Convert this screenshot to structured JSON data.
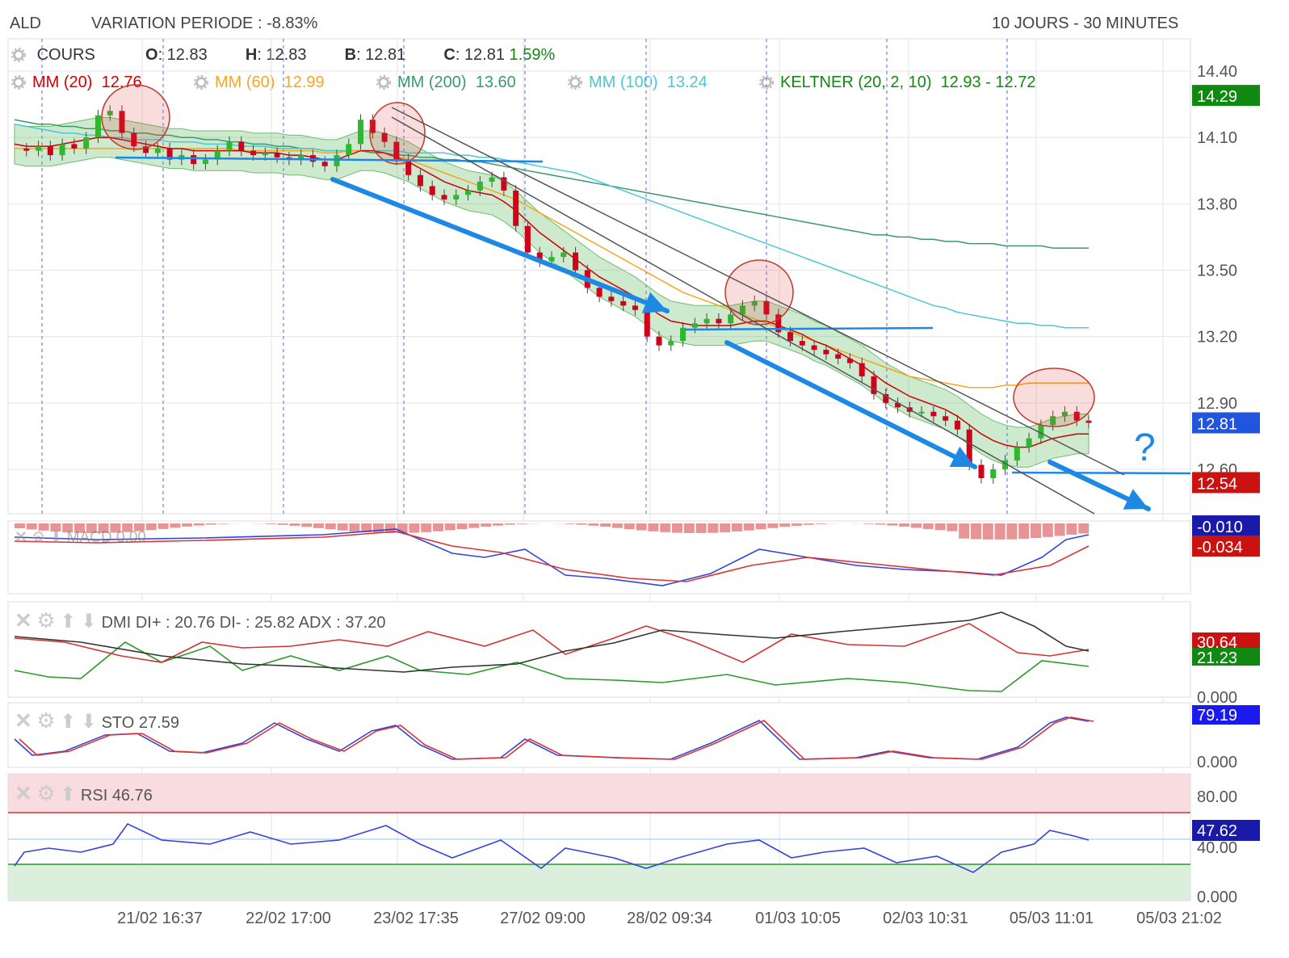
{
  "header": {
    "symbol": "ALD",
    "variation": "VARIATION PERIODE : -8.83%",
    "period": "10 JOURS - 30 MINUTES"
  },
  "price_legend": {
    "cours": "COURS",
    "o_label": "O",
    "o_value": ": 12.83",
    "h_label": "H",
    "h_value": ": 12.83",
    "b_label": "B",
    "b_value": ": 12.81",
    "c_label": "C",
    "c_value": ": 12.81",
    "change": "1.59%"
  },
  "ma_legend": [
    {
      "label": "MM (20)",
      "value": "12.76",
      "color": "#d00000"
    },
    {
      "label": "MM (60)",
      "value": "12.99",
      "color": "#f5a623"
    },
    {
      "label": "MM (200)",
      "value": "13.60",
      "color": "#3a9a6a"
    },
    {
      "label": "MM (100)",
      "value": "13.24",
      "color": "#4cc7d4"
    },
    {
      "label": "KELTNER (20, 2, 10)",
      "value": "12.93 - 12.72",
      "color": "#118811"
    }
  ],
  "indicators": {
    "macd": {
      "label": "MACD",
      "value": "0.00",
      "badge1": "-0.010",
      "badge2": "-0.034"
    },
    "dmi": {
      "label": "DMI",
      "text": "DI+ : 20.76 DI- : 25.82 ADX : 37.20",
      "badge1": "30.64",
      "badge2": "21.23",
      "axis_low": "0.000"
    },
    "sto": {
      "label": "STO",
      "value": "27.59",
      "badge": "79.19",
      "axis_low": "0.000"
    },
    "rsi": {
      "label": "RSI",
      "value": "46.76",
      "badge": "47.62",
      "axis": [
        "80.00",
        "40.00",
        "0.000"
      ]
    }
  },
  "annotation": {
    "question": "?"
  },
  "colors": {
    "up": "#2eb82e",
    "down": "#d0021b",
    "trend_arrow": "#1e88e5",
    "grid_dash": "#5566ee"
  },
  "chart_data": {
    "type": "candlestick",
    "y_ticks": [
      "14.40",
      "14.10",
      "13.80",
      "13.50",
      "13.20",
      "12.90",
      "12.60"
    ],
    "ylim": [
      12.4,
      14.6
    ],
    "x_tick_labels": [
      "21/02 16:37",
      "22/02 17:00",
      "23/02 17:35",
      "27/02 09:00",
      "28/02 09:34",
      "01/03 10:05",
      "02/03 10:31",
      "05/03 11:01",
      "05/03 21:02"
    ],
    "badges": [
      {
        "text": "14.29",
        "value": 14.29,
        "color": "#118811"
      },
      {
        "text": "12.81",
        "value": 12.81,
        "color": "#2255dd"
      },
      {
        "text": "12.54",
        "value": 12.54,
        "color": "#cc1111"
      }
    ],
    "close_path": [
      14.05,
      14.04,
      14.06,
      14.02,
      14.07,
      14.05,
      14.1,
      14.2,
      14.22,
      14.12,
      14.06,
      14.03,
      14.05,
      14.0,
      14.02,
      13.98,
      14.0,
      14.04,
      14.08,
      14.04,
      14.02,
      14.03,
      14.01,
      14.0,
      14.02,
      13.99,
      13.97,
      14.02,
      14.07,
      14.18,
      14.12,
      14.08,
      14.0,
      13.93,
      13.88,
      13.84,
      13.82,
      13.84,
      13.86,
      13.9,
      13.92,
      13.86,
      13.7,
      13.58,
      13.54,
      13.56,
      13.58,
      13.5,
      13.42,
      13.38,
      13.36,
      13.34,
      13.32,
      13.2,
      13.16,
      13.18,
      13.24,
      13.26,
      13.28,
      13.26,
      13.3,
      13.34,
      13.36,
      13.3,
      13.22,
      13.18,
      13.16,
      13.14,
      13.12,
      13.1,
      13.08,
      13.02,
      12.94,
      12.9,
      12.88,
      12.86,
      12.86,
      12.84,
      12.82,
      12.78,
      12.62,
      12.56,
      12.6,
      12.64,
      12.7,
      12.74,
      12.8,
      12.84,
      12.86,
      12.82,
      12.81
    ],
    "ma20": [
      14.07,
      14.06,
      14.06,
      14.06,
      14.07,
      14.08,
      14.09,
      14.1,
      14.1,
      14.09,
      14.08,
      14.07,
      14.06,
      14.05,
      14.05,
      14.04,
      14.04,
      14.04,
      14.04,
      14.04,
      14.03,
      14.03,
      14.03,
      14.02,
      14.02,
      14.01,
      14.0,
      14.0,
      14.02,
      14.04,
      14.04,
      14.03,
      14.01,
      13.99,
      13.96,
      13.93,
      13.9,
      13.88,
      13.86,
      13.85,
      13.84,
      13.81,
      13.77,
      13.72,
      13.67,
      13.63,
      13.59,
      13.55,
      13.51,
      13.47,
      13.44,
      13.41,
      13.38,
      13.34,
      13.3,
      13.27,
      13.26,
      13.25,
      13.25,
      13.25,
      13.25,
      13.26,
      13.27,
      13.27,
      13.25,
      13.23,
      13.21,
      13.18,
      13.16,
      13.13,
      13.1,
      13.07,
      13.03,
      12.99,
      12.96,
      12.93,
      12.91,
      12.89,
      12.87,
      12.84,
      12.8,
      12.76,
      12.73,
      12.71,
      12.7,
      12.7,
      12.72,
      12.74,
      12.75,
      12.76,
      12.76
    ],
    "ma60": [
      14.05,
      14.05,
      14.05,
      14.05,
      14.05,
      14.05,
      14.05,
      14.05,
      14.05,
      14.05,
      14.05,
      14.05,
      14.05,
      14.05,
      14.05,
      14.05,
      14.05,
      14.05,
      14.05,
      14.04,
      14.04,
      14.04,
      14.04,
      14.04,
      14.04,
      14.04,
      14.03,
      14.03,
      14.04,
      14.04,
      14.04,
      14.03,
      14.01,
      14.0,
      13.98,
      13.96,
      13.94,
      13.92,
      13.9,
      13.88,
      13.86,
      13.84,
      13.82,
      13.79,
      13.76,
      13.73,
      13.7,
      13.67,
      13.64,
      13.61,
      13.58,
      13.55,
      13.52,
      13.49,
      13.46,
      13.43,
      13.4,
      13.38,
      13.36,
      13.34,
      13.32,
      13.3,
      13.28,
      13.26,
      13.24,
      13.22,
      13.2,
      13.18,
      13.16,
      13.14,
      13.12,
      13.1,
      13.08,
      13.06,
      13.04,
      13.02,
      13.01,
      13.0,
      12.99,
      12.98,
      12.97,
      12.97,
      12.97,
      12.98,
      12.98,
      12.99,
      12.99,
      12.99,
      12.99,
      12.99,
      12.99
    ],
    "ma100": [
      14.16,
      14.15,
      14.14,
      14.13,
      14.12,
      14.12,
      14.11,
      14.11,
      14.1,
      14.1,
      14.09,
      14.09,
      14.09,
      14.08,
      14.08,
      14.08,
      14.07,
      14.07,
      14.07,
      14.06,
      14.06,
      14.06,
      14.05,
      14.05,
      14.05,
      14.05,
      14.04,
      14.04,
      14.04,
      14.04,
      14.04,
      14.04,
      14.04,
      14.03,
      14.03,
      14.03,
      14.03,
      14.02,
      14.02,
      14.01,
      14.01,
      14.0,
      13.99,
      13.98,
      13.97,
      13.96,
      13.95,
      13.94,
      13.92,
      13.9,
      13.88,
      13.86,
      13.84,
      13.82,
      13.8,
      13.78,
      13.76,
      13.74,
      13.72,
      13.7,
      13.68,
      13.66,
      13.64,
      13.62,
      13.6,
      13.58,
      13.56,
      13.54,
      13.52,
      13.5,
      13.48,
      13.46,
      13.44,
      13.42,
      13.4,
      13.38,
      13.36,
      13.34,
      13.33,
      13.31,
      13.3,
      13.29,
      13.28,
      13.27,
      13.26,
      13.26,
      13.25,
      13.25,
      13.24,
      13.24,
      13.24
    ],
    "ma200": [
      14.18,
      14.17,
      14.16,
      14.16,
      14.15,
      14.15,
      14.14,
      14.14,
      14.13,
      14.13,
      14.12,
      14.12,
      14.11,
      14.11,
      14.1,
      14.1,
      14.09,
      14.09,
      14.08,
      14.08,
      14.07,
      14.07,
      14.06,
      14.06,
      14.05,
      14.05,
      14.04,
      14.04,
      14.04,
      14.04,
      14.03,
      14.03,
      14.02,
      14.02,
      14.01,
      14.01,
      14.0,
      14.0,
      13.99,
      13.99,
      13.98,
      13.97,
      13.96,
      13.95,
      13.94,
      13.93,
      13.92,
      13.91,
      13.9,
      13.89,
      13.88,
      13.87,
      13.86,
      13.85,
      13.84,
      13.83,
      13.82,
      13.81,
      13.8,
      13.79,
      13.78,
      13.77,
      13.76,
      13.75,
      13.74,
      13.73,
      13.72,
      13.71,
      13.7,
      13.69,
      13.68,
      13.67,
      13.66,
      13.66,
      13.65,
      13.65,
      13.64,
      13.64,
      13.63,
      13.63,
      13.62,
      13.62,
      13.62,
      13.61,
      13.61,
      13.61,
      13.61,
      13.6,
      13.6,
      13.6,
      13.6
    ]
  }
}
